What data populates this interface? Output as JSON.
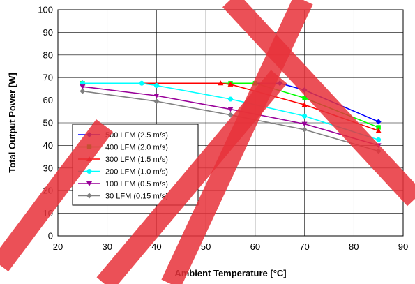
{
  "chart_data": {
    "type": "line",
    "xlabel": "Ambient Temperature [°C]",
    "ylabel": "Total Output Power [W]",
    "xlim": [
      20,
      90
    ],
    "ylim": [
      0,
      100
    ],
    "xticks": [
      20,
      30,
      40,
      50,
      60,
      70,
      80,
      90
    ],
    "yticks": [
      0,
      10,
      20,
      30,
      40,
      50,
      60,
      70,
      80,
      90,
      100
    ],
    "grid": true,
    "legend_position": "lower-left",
    "watermark_color": "#e8313a",
    "series": [
      {
        "name": "500 LFM (2.5 m/s)",
        "color": "#0000ff",
        "marker": "diamond",
        "points": [
          [
            25,
            67.5
          ],
          [
            65,
            67.5
          ],
          [
            70,
            64.5
          ],
          [
            85,
            50.5
          ]
        ]
      },
      {
        "name": "400 LFM (2.0 m/s)",
        "color": "#00ff00",
        "marker": "square",
        "points": [
          [
            25,
            67.5
          ],
          [
            55,
            67.5
          ],
          [
            60,
            67.5
          ],
          [
            70,
            61
          ],
          [
            85,
            48
          ]
        ]
      },
      {
        "name": "300 LFM (1.5 m/s)",
        "color": "#ff0000",
        "marker": "triangle",
        "points": [
          [
            25,
            67.5
          ],
          [
            53,
            67.5
          ],
          [
            55,
            67
          ],
          [
            70,
            58
          ],
          [
            85,
            46.5
          ]
        ]
      },
      {
        "name": "200 LFM (1.0 m/s)",
        "color": "#00ffff",
        "marker": "circle",
        "points": [
          [
            25,
            67.5
          ],
          [
            37,
            67.5
          ],
          [
            40,
            66.5
          ],
          [
            55,
            60.5
          ],
          [
            70,
            53
          ],
          [
            85,
            42.5
          ]
        ]
      },
      {
        "name": "100 LFM (0.5 m/s)",
        "color": "#990099",
        "marker": "triangle-down",
        "points": [
          [
            25,
            66
          ],
          [
            40,
            62
          ],
          [
            55,
            56
          ],
          [
            70,
            49.5
          ],
          [
            85,
            40
          ]
        ]
      },
      {
        "name": "30 LFM (0.15 m/s)",
        "color": "#808080",
        "marker": "diamond",
        "points": [
          [
            25,
            64
          ],
          [
            40,
            59.5
          ],
          [
            55,
            53.5
          ],
          [
            70,
            47
          ],
          [
            85,
            37.5
          ]
        ]
      }
    ]
  }
}
